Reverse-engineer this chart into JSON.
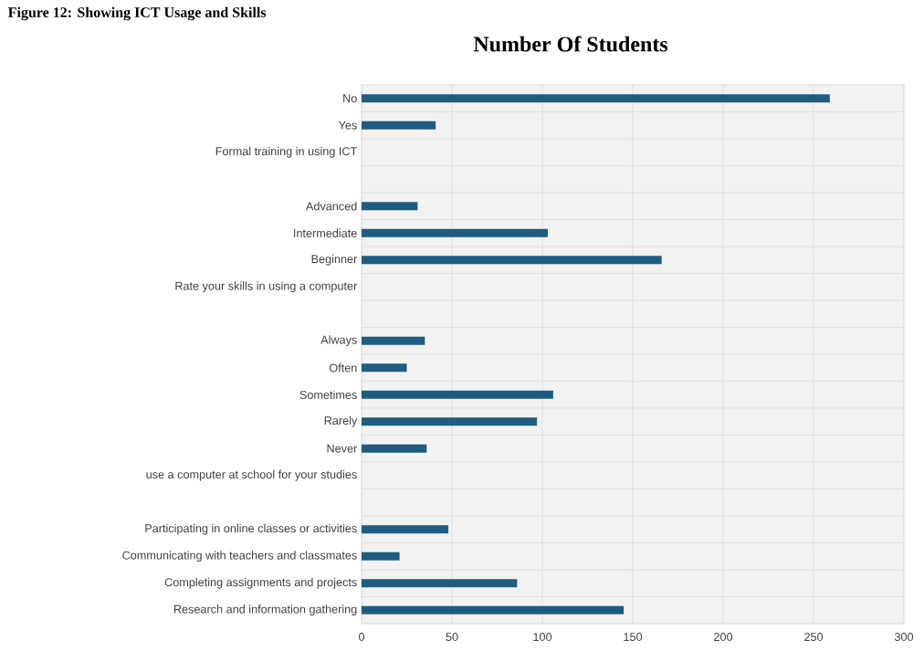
{
  "chart_data": {
    "type": "bar",
    "orientation": "horizontal",
    "title": "Number Of Students",
    "annotations": [
      "Figure 12: Showing ICT Usage and Skills"
    ],
    "categories": [
      "No",
      "Yes",
      "Formal training in using ICT",
      null,
      "Advanced",
      "Intermediate",
      "Beginner",
      "Rate your skills in using a computer",
      null,
      "Always",
      "Often",
      "Sometimes",
      "Rarely",
      "Never",
      "use a computer at school for your studies",
      null,
      "Participating in online classes or activities",
      "Communicating with teachers and classmates",
      "Completing assignments and projects",
      "Research and information gathering"
    ],
    "values": [
      259,
      41,
      null,
      null,
      31,
      103,
      166,
      null,
      null,
      35,
      25,
      106,
      97,
      36,
      null,
      null,
      48,
      21,
      86,
      145
    ],
    "color": "#1f5c80",
    "xlim": [
      0,
      300
    ],
    "xticks": [
      0,
      50,
      100,
      150,
      200,
      250,
      300
    ],
    "grid": true
  }
}
